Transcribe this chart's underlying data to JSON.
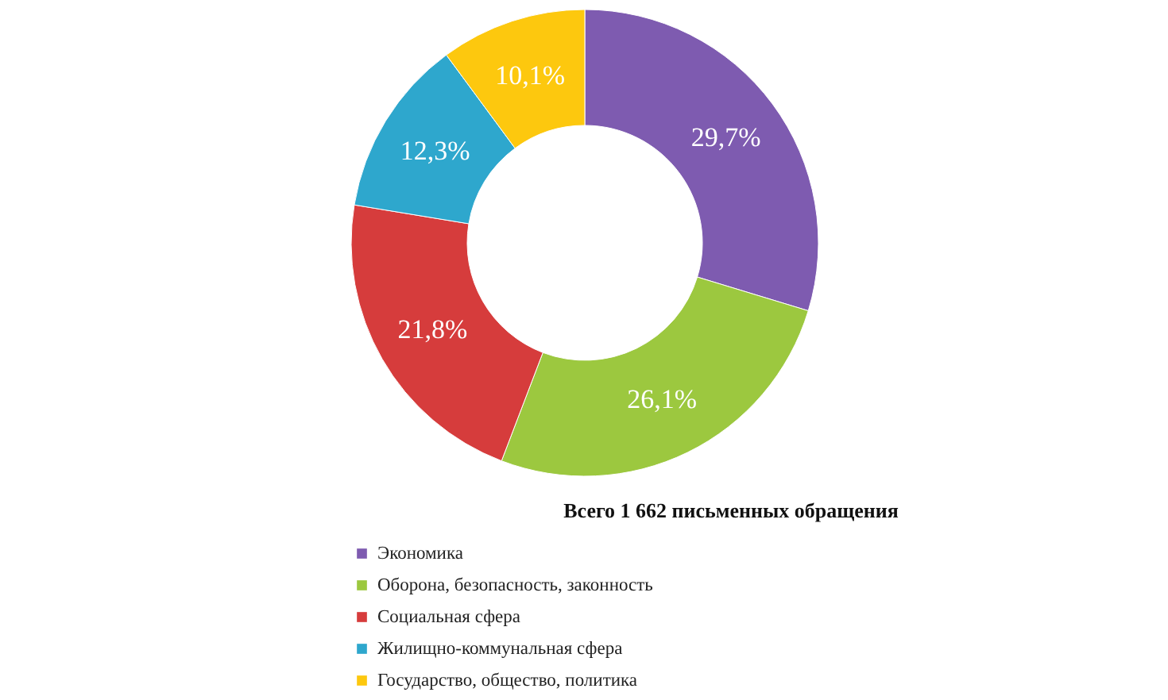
{
  "chart_data": {
    "type": "donut",
    "title": "Всего 1 662 письменных обращения",
    "categories": [
      "Экономика",
      "Оборона, безопасность, законность",
      "Социальная сфера",
      "Жилищно-коммунальная сфера",
      "Государство, общество, политика"
    ],
    "values": [
      29.7,
      26.1,
      21.8,
      12.3,
      10.1
    ],
    "colors": [
      "#7e5bb0",
      "#9cc83f",
      "#d63c3c",
      "#2ea7cd",
      "#fdc80e"
    ],
    "value_labels": [
      "29,7%",
      "26,1%",
      "21,8%",
      "12,3%",
      "10,1%"
    ],
    "legend": "bottom"
  }
}
